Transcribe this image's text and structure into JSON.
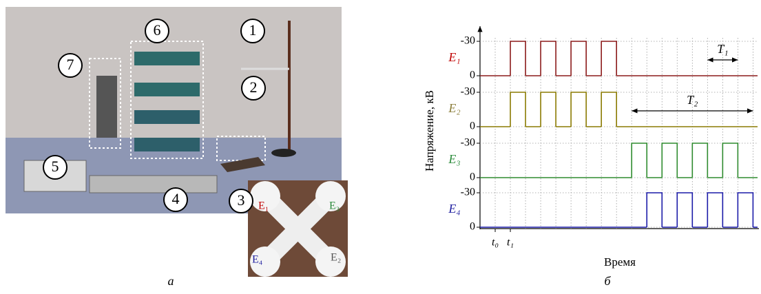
{
  "figure": {
    "panel_a": {
      "label": "а",
      "callouts": [
        "1",
        "2",
        "3",
        "4",
        "5",
        "6",
        "7"
      ],
      "inset_labels": [
        "E₁",
        "E₃",
        "E₄",
        "E₂"
      ]
    },
    "panel_b": {
      "label": "б"
    }
  },
  "chart_data": {
    "type": "pulse",
    "y_label": "Напряжение, кВ",
    "x_label": "Время",
    "ylim": [
      0,
      -30
    ],
    "yticks": [
      -30,
      0
    ],
    "xlim": [
      0,
      18.3
    ],
    "xticks": [
      {
        "value": 1,
        "label": "t₀"
      },
      {
        "value": 2,
        "label": "t₁"
      }
    ],
    "xgrid": [
      1,
      2,
      3,
      4,
      5,
      6,
      7,
      8,
      9,
      10,
      11,
      12,
      13,
      14,
      15,
      16,
      17,
      18
    ],
    "grid": true,
    "level": -30,
    "series": [
      {
        "name": "E₁",
        "color": "#8b1a1a",
        "label_color": "#c00000",
        "pulses": [
          [
            2,
            3
          ],
          [
            4,
            5
          ],
          [
            6,
            7
          ],
          [
            8,
            9
          ]
        ]
      },
      {
        "name": "E₂",
        "color": "#8a7a00",
        "label_color": "#8b7d3a",
        "pulses": [
          [
            2,
            3
          ],
          [
            4,
            5
          ],
          [
            6,
            7
          ],
          [
            8,
            9
          ]
        ]
      },
      {
        "name": "E₃",
        "color": "#2e8b2e",
        "label_color": "#2a8a3a",
        "pulses": [
          [
            10,
            11
          ],
          [
            12,
            13
          ],
          [
            14,
            15
          ],
          [
            16,
            17
          ]
        ]
      },
      {
        "name": "E₄",
        "color": "#1a1aa8",
        "label_color": "#2020a0",
        "pulses": [
          [
            11,
            12
          ],
          [
            13,
            14
          ],
          [
            15,
            16
          ],
          [
            17,
            18
          ]
        ]
      }
    ],
    "annotations": [
      {
        "text": "T₁",
        "x": [
          15,
          17
        ],
        "row": 0
      },
      {
        "text": "T₂",
        "x": [
          10,
          18
        ],
        "row": 1
      }
    ]
  }
}
